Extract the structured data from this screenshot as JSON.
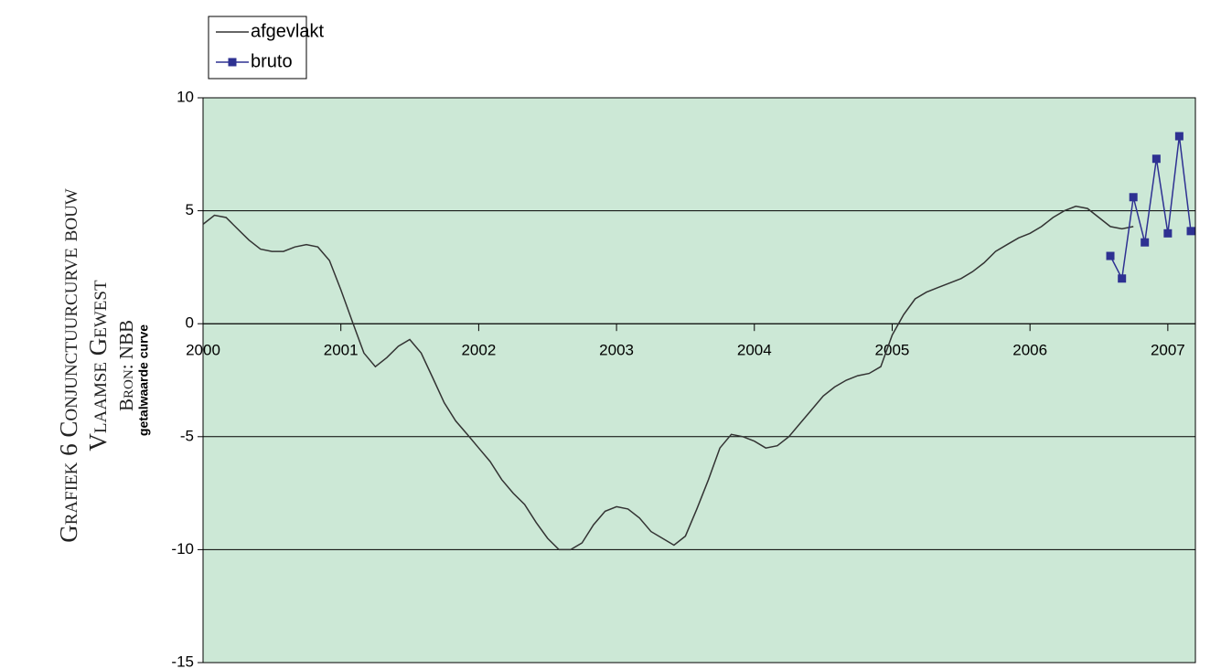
{
  "chart_data": {
    "type": "line",
    "title_lines": [
      "Grafiek 6 Conjunctuurcurve bouw",
      "Vlaamse Gewest",
      "Bron: NBB"
    ],
    "y_label": "getalwaarde curve",
    "xlim": [
      2000,
      2007.2
    ],
    "xticks": [
      2000,
      2001,
      2002,
      2003,
      2004,
      2005,
      2006,
      2007
    ],
    "ylim": [
      -15,
      10
    ],
    "yticks": [
      -15,
      -10,
      -5,
      0,
      5,
      10
    ],
    "grid": true,
    "plot_background": "#cce8d6",
    "series": [
      {
        "name": "afgevlakt",
        "color": "#333333",
        "marker": false,
        "x": [
          2000,
          2000.083,
          2000.167,
          2000.25,
          2000.333,
          2000.417,
          2000.5,
          2000.583,
          2000.667,
          2000.75,
          2000.833,
          2000.917,
          2001,
          2001.083,
          2001.167,
          2001.25,
          2001.333,
          2001.417,
          2001.5,
          2001.583,
          2001.667,
          2001.75,
          2001.833,
          2001.917,
          2002,
          2002.083,
          2002.167,
          2002.25,
          2002.333,
          2002.417,
          2002.5,
          2002.583,
          2002.667,
          2002.75,
          2002.833,
          2002.917,
          2003,
          2003.083,
          2003.167,
          2003.25,
          2003.333,
          2003.417,
          2003.5,
          2003.583,
          2003.667,
          2003.75,
          2003.833,
          2003.917,
          2004,
          2004.083,
          2004.167,
          2004.25,
          2004.333,
          2004.417,
          2004.5,
          2004.583,
          2004.667,
          2004.75,
          2004.833,
          2004.917,
          2005,
          2005.083,
          2005.167,
          2005.25,
          2005.333,
          2005.417,
          2005.5,
          2005.583,
          2005.667,
          2005.75,
          2005.833,
          2005.917,
          2006,
          2006.083,
          2006.167,
          2006.25,
          2006.333,
          2006.417,
          2006.5,
          2006.583,
          2006.667,
          2006.75
        ],
        "values": [
          4.4,
          4.8,
          4.7,
          4.2,
          3.7,
          3.3,
          3.2,
          3.2,
          3.4,
          3.5,
          3.4,
          2.8,
          1.5,
          0.1,
          -1.3,
          -1.9,
          -1.5,
          -1.0,
          -0.7,
          -1.3,
          -2.4,
          -3.5,
          -4.3,
          -4.9,
          -5.5,
          -6.1,
          -6.9,
          -7.5,
          -8.0,
          -8.8,
          -9.5,
          -10.0,
          -10.0,
          -9.7,
          -8.9,
          -8.3,
          -8.1,
          -8.2,
          -8.6,
          -9.2,
          -9.5,
          -9.8,
          -9.4,
          -8.2,
          -6.9,
          -5.5,
          -4.9,
          -5.0,
          -5.2,
          -5.5,
          -5.4,
          -5.0,
          -4.4,
          -3.8,
          -3.2,
          -2.8,
          -2.5,
          -2.3,
          -2.2,
          -1.9,
          -0.5,
          0.4,
          1.1,
          1.4,
          1.6,
          1.8,
          2.0,
          2.3,
          2.7,
          3.2,
          3.5,
          3.8,
          4.0,
          4.3,
          4.7,
          5.0,
          5.2,
          5.1,
          4.7,
          4.3,
          4.2,
          4.3
        ]
      },
      {
        "name": "bruto",
        "color": "#2e3192",
        "marker": true,
        "x": [
          2006.583,
          2006.667,
          2006.75,
          2006.833,
          2006.917,
          2007,
          2007.083,
          2007.167
        ],
        "values": [
          3.0,
          2.0,
          5.6,
          3.6,
          7.3,
          4.0,
          8.3,
          4.1
        ]
      }
    ]
  }
}
